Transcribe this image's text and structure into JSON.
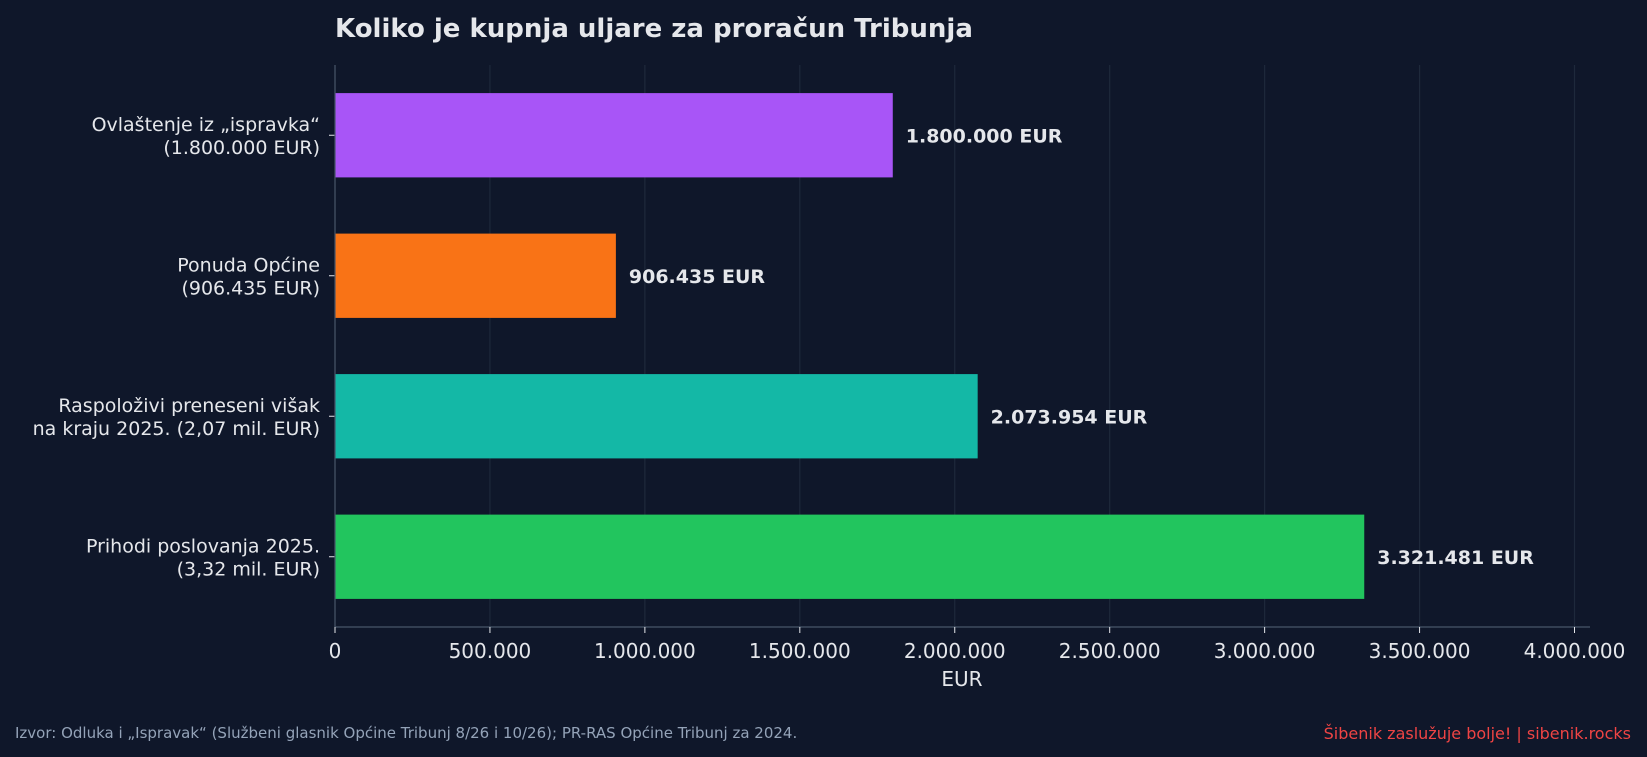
{
  "chart_data": {
    "type": "bar",
    "orientation": "horizontal",
    "title": "Koliko je kupnja uljare za proračun Tribunja",
    "xlabel": "EUR",
    "ylabel": "",
    "xlim": [
      0,
      4050000
    ],
    "grid": "vertical",
    "categories": [
      [
        "Ovlaštenje iz „ispravka“",
        "(1.800.000 EUR)"
      ],
      [
        "Ponuda Općine",
        "(906.435 EUR)"
      ],
      [
        "Raspoloživi preneseni višak",
        "na kraju 2025. (2,07 mil. EUR)"
      ],
      [
        "Prihodi poslovanja 2025.",
        "(3,32 mil. EUR)"
      ]
    ],
    "values": [
      1800000,
      906435,
      2073954,
      3321481
    ],
    "value_labels": [
      "1.800.000 EUR",
      "906.435 EUR",
      "2.073.954 EUR",
      "3.321.481 EUR"
    ],
    "colors": [
      "#a855f7",
      "#f97316",
      "#14b8a6",
      "#22c55e"
    ],
    "ticks": [
      0,
      500000,
      1000000,
      1500000,
      2000000,
      2500000,
      3000000,
      3500000,
      4000000
    ],
    "tick_labels": [
      "0",
      "500.000",
      "1.000.000",
      "1.500.000",
      "2.000.000",
      "2.500.000",
      "3.000.000",
      "3.500.000",
      "4.000.000"
    ]
  },
  "footer": {
    "source": "Izvor: Odluka i „Ispravak“ (Službeni glasnik Općine Tribunj 8/26 i 10/26); PR-RAS Općine Tribunj za 2024.",
    "brand": "Šibenik zaslužuje bolje!  |  sibenik.rocks"
  },
  "colors": {
    "background": "#0f172a",
    "text": "#e5e7eb",
    "grid": "#1e293b",
    "footer_source": "#94a3b8",
    "footer_brand": "#ef4444"
  }
}
